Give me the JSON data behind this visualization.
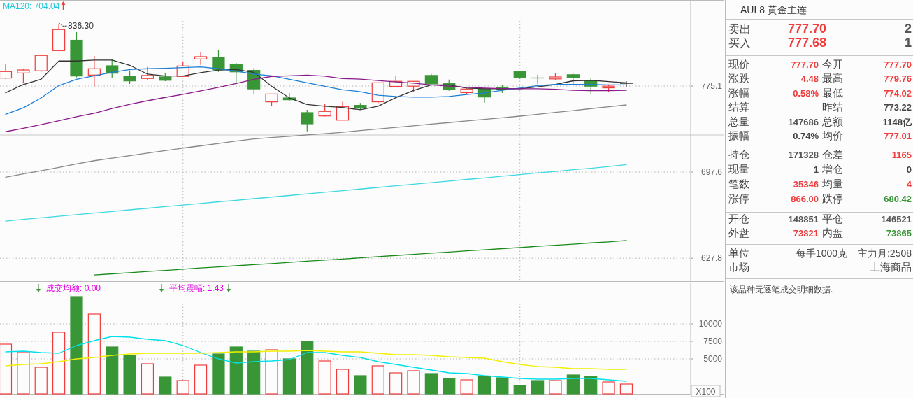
{
  "chart_data": [
    {
      "type": "candlestick",
      "categories": [
        null,
        null,
        null,
        null,
        null,
        null,
        null,
        null,
        null,
        null,
        null,
        null,
        null,
        null,
        null,
        null,
        null,
        null,
        null,
        null,
        null,
        null,
        null,
        null,
        null,
        null,
        null,
        null,
        null,
        null,
        null,
        null,
        null,
        null,
        null,
        null
      ],
      "ohlc": [
        [
          782.7,
          796.2,
          782.0,
          789.0
        ],
        [
          787.6,
          791.2,
          777.6,
          790.5
        ],
        [
          789.7,
          804.7,
          788.3,
          804.7
        ],
        [
          809.5,
          836.3,
          808.8,
          830.6
        ],
        [
          819.8,
          828.0,
          783.4,
          784.7
        ],
        [
          785.6,
          804.2,
          774.9,
          791.7
        ],
        [
          794.6,
          800.8,
          782.7,
          787.4
        ],
        [
          784.5,
          790.1,
          777.1,
          780.0
        ],
        [
          782.3,
          793.5,
          780.5,
          785.2
        ],
        [
          783.8,
          787.9,
          779.8,
          780.6
        ],
        [
          784.3,
          798.9,
          783.8,
          794.4
        ],
        [
          801.2,
          808.3,
          795.5,
          803.5
        ],
        [
          802.8,
          809.7,
          788.7,
          790.7
        ],
        [
          795.9,
          797.3,
          777.3,
          788.7
        ],
        [
          790.1,
          792.4,
          767.2,
          772.4
        ],
        [
          760.2,
          767.6,
          756.2,
          767.6
        ],
        [
          763.9,
          768.5,
          760.8,
          762.2
        ],
        [
          750.3,
          752.8,
          733.3,
          740.1
        ],
        [
          747.3,
          758.2,
          746.7,
          751.4
        ],
        [
          743.4,
          760.4,
          743.4,
          755.9
        ],
        [
          757.0,
          759.2,
          752.9,
          754.5
        ],
        [
          760.3,
          778.2,
          758.9,
          778.2
        ],
        [
          774.8,
          784.5,
          774.4,
          779.6
        ],
        [
          775.0,
          779.6,
          769.8,
          779.6
        ],
        [
          785.2,
          786.6,
          777.3,
          777.3
        ],
        [
          777.6,
          781.2,
          770.7,
          772.1
        ],
        [
          768.9,
          772.3,
          767.3,
          772.3
        ],
        [
          772.3,
          772.3,
          759.5,
          764.8
        ],
        [
          773.6,
          776.0,
          768.6,
          771.6
        ],
        [
          789.1,
          789.8,
          781.9,
          783.3
        ],
        [
          782.8,
          785.9,
          777.1,
          782.6
        ],
        [
          781.9,
          787.1,
          780.8,
          783.8
        ],
        [
          785.9,
          786.9,
          777.1,
          783.3
        ],
        [
          780.6,
          783.1,
          767.5,
          775.0
        ],
        [
          773.4,
          776.6,
          769.3,
          775.0
        ],
        [
          777.7,
          779.76,
          774.02,
          777.7
        ]
      ],
      "colors": [
        "#f03c3c",
        "#f03c3c",
        "#f03c3c",
        "#f03c3c",
        "#399637",
        "#f03c3c",
        "#399637",
        "#399637",
        "#f03c3c",
        "#399637",
        "#f03c3c",
        "#f03c3c",
        "#399637",
        "#399637",
        "#399637",
        "#f03c3c",
        "#399637",
        "#399637",
        "#f03c3c",
        "#f03c3c",
        "#399637",
        "#f03c3c",
        "#f03c3c",
        "#f03c3c",
        "#399637",
        "#399637",
        "#f03c3c",
        "#399637",
        "#399637",
        "#399637",
        "#399637",
        "#f03c3c",
        "#399637",
        "#399637",
        "#f03c3c",
        "#333333"
      ],
      "series": [
        {
          "type": "line",
          "color": "#333333",
          "values": [
            768.7,
            776.6,
            781.6,
            799.2,
            799.2,
            800.1,
            800.1,
            795.1,
            786.5,
            784.7,
            784.7,
            787.9,
            790.5,
            791.0,
            788.3,
            774.9,
            763.9,
            757.8,
            756.2,
            755.1,
            752.9,
            756.2,
            764.1,
            770.9,
            776.2,
            776.2,
            773.2,
            772.5,
            772.5,
            772.5,
            774.4,
            776.6,
            780.1,
            780.6,
            779.4,
            778.2
          ]
        },
        {
          "type": "line",
          "color": "#1e7fd8",
          "values": [
            748.8,
            754.7,
            763.9,
            775.6,
            781.6,
            784.9,
            788.3,
            791.0,
            791.7,
            792.1,
            792.8,
            793.5,
            791.7,
            789.4,
            786.5,
            784.9,
            781.6,
            778.2,
            774.9,
            771.6,
            769.8,
            766.5,
            765.3,
            764.6,
            764.6,
            765.3,
            767.1,
            768.6,
            771.0,
            773.2,
            775.5,
            776.6,
            776.6,
            776.6,
            776.2,
            776.2
          ]
        },
        {
          "type": "line",
          "color": "#8b1a8b",
          "values": [
            733.0,
            736.1,
            739.4,
            742.8,
            746.6,
            749.8,
            754.1,
            758.0,
            761.3,
            764.4,
            767.2,
            770.5,
            773.8,
            777.6,
            781.6,
            784.3,
            784.9,
            785.6,
            784.5,
            782.2,
            781.7,
            780.3,
            779.0,
            777.8,
            776.2,
            775.0,
            773.9,
            773.2,
            772.7,
            772.5,
            772.5,
            772.1,
            771.0,
            770.7,
            770.7,
            771.0
          ]
        },
        {
          "type": "line",
          "color": "#888888",
          "values": [
            693.2,
            696.1,
            698.8,
            701.6,
            704.6,
            707.4,
            709.6,
            711.8,
            714.0,
            716.2,
            718.4,
            720.4,
            722.5,
            724.7,
            726.5,
            727.7,
            728.8,
            730.1,
            731.2,
            732.5,
            734.0,
            735.4,
            736.9,
            738.3,
            739.8,
            741.2,
            742.7,
            744.2,
            745.6,
            747.1,
            748.8,
            750.5,
            752.2,
            754.0,
            755.7,
            757.4
          ]
        },
        {
          "type": "line",
          "color": "#3fd8e0",
          "values": [
            657.0,
            658.4,
            659.6,
            660.9,
            662.2,
            663.5,
            664.8,
            666.1,
            667.4,
            668.8,
            670.0,
            671.3,
            672.7,
            673.9,
            675.3,
            676.6,
            677.9,
            679.3,
            680.6,
            681.9,
            683.3,
            684.6,
            686.0,
            687.3,
            688.7,
            690.0,
            691.4,
            692.7,
            694.1,
            695.5,
            696.9,
            698.2,
            699.6,
            700.9,
            702.3,
            704.04
          ]
        },
        {
          "type": "line",
          "color": "#1a8a1a",
          "values": [
            null,
            null,
            null,
            null,
            null,
            615.1,
            615.9,
            616.8,
            617.7,
            618.5,
            619.4,
            620.3,
            621.1,
            622.0,
            622.9,
            623.7,
            624.6,
            625.5,
            626.4,
            627.2,
            628.1,
            629.0,
            629.9,
            630.8,
            631.7,
            632.5,
            633.5,
            634.3,
            635.2,
            636.1,
            637.0,
            637.9,
            638.7,
            639.7,
            640.5,
            641.5
          ]
        }
      ],
      "ylim": [
        610.4,
        861.2
      ],
      "yticks": [
        627.8,
        697.6,
        775.1
      ],
      "log": true,
      "grid": "y",
      "ref_lines": [
        {
          "axis": "y",
          "value": 730.0,
          "color": "#c8c8c8",
          "line_style": "solid"
        }
      ],
      "annotations": [
        "MA120: 704.04",
        "836.30"
      ]
    },
    {
      "type": "bar",
      "categories": [
        null,
        null,
        null,
        null,
        null,
        null,
        null,
        null,
        null,
        null,
        null,
        null,
        null,
        null,
        null,
        null,
        null,
        null,
        null,
        null,
        null,
        null,
        null,
        null,
        null,
        null,
        null,
        null,
        null,
        null,
        null,
        null,
        null,
        null,
        null,
        null
      ],
      "series": [
        {
          "type": "bar",
          "values": [
            7100,
            6000,
            3800,
            8800,
            13900,
            11400,
            6700,
            5500,
            4300,
            2400,
            1900,
            4100,
            5700,
            6700,
            6100,
            6300,
            5000,
            7500,
            4700,
            3500,
            2600,
            4000,
            3000,
            3300,
            2900,
            2200,
            2000,
            2500,
            2300,
            1200,
            1900,
            1900,
            2700,
            2500,
            1700,
            1400
          ],
          "colors": [
            "#f03c3c",
            "#f03c3c",
            "#f03c3c",
            "#f03c3c",
            "#399637",
            "#f03c3c",
            "#399637",
            "#399637",
            "#f03c3c",
            "#399637",
            "#f03c3c",
            "#f03c3c",
            "#399637",
            "#399637",
            "#399637",
            "#f03c3c",
            "#399637",
            "#399637",
            "#f03c3c",
            "#f03c3c",
            "#399637",
            "#f03c3c",
            "#f03c3c",
            "#f03c3c",
            "#399637",
            "#399637",
            "#f03c3c",
            "#399637",
            "#399637",
            "#399637",
            "#399637",
            "#f03c3c",
            "#399637",
            "#399637",
            "#f03c3c",
            "#f03c3c"
          ]
        },
        {
          "type": "line",
          "color": "#00e0ea",
          "values": [
            6000,
            6100,
            5900,
            5800,
            6900,
            7600,
            8200,
            8100,
            7800,
            7600,
            6900,
            5900,
            5000,
            4400,
            4600,
            4700,
            4900,
            5900,
            5900,
            5500,
            5200,
            4600,
            4200,
            3800,
            3400,
            3000,
            2900,
            2600,
            2400,
            2200,
            2100,
            2100,
            2200,
            2200,
            2000,
            1800
          ]
        },
        {
          "type": "line",
          "color": "#f0f000",
          "values": [
            4000,
            4200,
            4300,
            4600,
            5000,
            5200,
            5500,
            5700,
            5800,
            5800,
            5800,
            5800,
            5900,
            6000,
            6000,
            6100,
            6100,
            6200,
            6100,
            6000,
            6000,
            5800,
            5600,
            5600,
            5500,
            5300,
            5200,
            5100,
            4600,
            4200,
            3900,
            3800,
            3600,
            3600,
            3500,
            3500
          ]
        }
      ],
      "ylim": [
        0,
        15900
      ],
      "yticks": [
        5000,
        7500,
        10000
      ],
      "grid": "y",
      "annotations": [
        "成交均额: 0.00",
        "平均震幅: 1.43",
        "X100"
      ]
    },
    {
      "type": "other",
      "title": "AUL8 黄金主连",
      "annotations": [
        "卖出",
        "777.70",
        "2",
        "买入",
        "777.68",
        "1",
        "现价",
        "777.70",
        "今开",
        "777.70",
        "涨跌",
        "4.48",
        "最高",
        "779.76",
        "涨幅",
        "0.58%",
        "最低",
        "774.02",
        "结算",
        "昨结",
        "773.22",
        "总量",
        "147686",
        "总额",
        "1148亿",
        "振幅",
        "0.74%",
        "均价",
        "777.01",
        "持仓",
        "171328",
        "仓差",
        "1165",
        "现量",
        "1",
        "增仓",
        "0",
        "笔数",
        "35346",
        "均量",
        "4",
        "涨停",
        "866.00",
        "跌停",
        "680.42",
        "开仓",
        "148851",
        "平仓",
        "146521",
        "外盘",
        "73821",
        "内盘",
        "73865",
        "单位",
        "每手1000克",
        "主力月:2508",
        "市场",
        "上海商品",
        "该品种无逐笔成交明细数据."
      ]
    }
  ]
}
